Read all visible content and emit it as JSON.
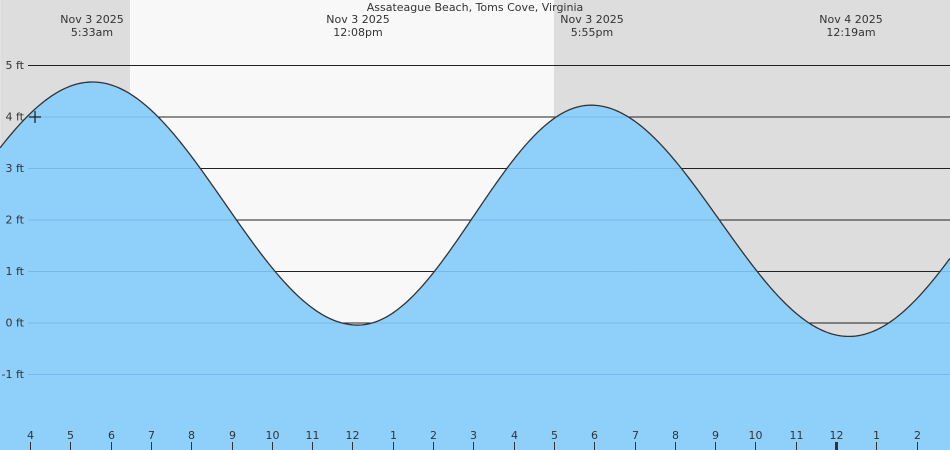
{
  "chart_data": {
    "type": "area",
    "title": "Assateague Beach, Toms Cove, Virginia",
    "xlabel": "",
    "ylabel": "",
    "y_unit": "ft",
    "ylim": [
      -2,
      5.5
    ],
    "y_ticks": [
      {
        "label": "5 ft",
        "value": 5
      },
      {
        "label": "4 ft",
        "value": 4
      },
      {
        "label": "3 ft",
        "value": 3
      },
      {
        "label": "2 ft",
        "value": 2
      },
      {
        "label": "1 ft",
        "value": 1
      },
      {
        "label": "0 ft",
        "value": 0
      },
      {
        "label": "-1 ft",
        "value": -1
      }
    ],
    "x_ticks": [
      "4",
      "5",
      "6",
      "7",
      "8",
      "9",
      "10",
      "11",
      "12",
      "1",
      "2",
      "3",
      "4",
      "5",
      "6",
      "7",
      "8",
      "9",
      "10",
      "11",
      "12",
      "1",
      "2"
    ],
    "x_tick_hours_from_4am": [
      0,
      1,
      2,
      3,
      4,
      5,
      6,
      7,
      8,
      9,
      10,
      11,
      12,
      13,
      14,
      15,
      16,
      17,
      18,
      19,
      20,
      21,
      22
    ],
    "x_range_hours_from_4am": [
      -0.74,
      22.83
    ],
    "grid": true,
    "legend": null,
    "extrema": [
      {
        "type": "high",
        "date": "Nov  3 2025",
        "time": "5:33am",
        "hours_from_4am": 1.55,
        "height_ft": 4.67
      },
      {
        "type": "low",
        "date": "Nov  3 2025",
        "time": "12:08pm",
        "hours_from_4am": 8.13,
        "height_ft": -0.05
      },
      {
        "type": "high",
        "date": "Nov  3 2025",
        "time": "5:55pm",
        "hours_from_4am": 13.92,
        "height_ft": 4.22
      },
      {
        "type": "low",
        "date": "Nov  4 2025",
        "time": "12:19am",
        "hours_from_4am": 20.32,
        "height_ft": -0.27
      }
    ],
    "current_marker": {
      "hours_from_4am": 0.05,
      "height_ft": 4.0
    },
    "night_shading": [
      {
        "from_hours": -0.74,
        "to_hours": 2.48
      },
      {
        "from_hours": 13.0,
        "to_hours": 22.83
      }
    ],
    "day_shading": [
      {
        "from_hours": 2.48,
        "to_hours": 13.0
      }
    ]
  },
  "colors": {
    "water": "#8fd0fb",
    "night": "#dddddd",
    "day": "#f8f8f8",
    "line": "#333333",
    "grid": "#222222",
    "text": "#333333"
  }
}
